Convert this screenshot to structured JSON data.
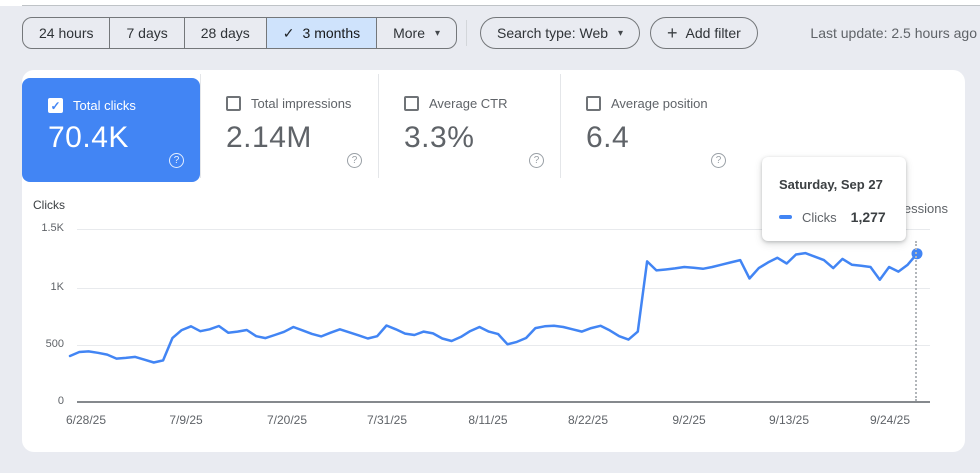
{
  "toolbar": {
    "date_ranges": [
      {
        "label": "24 hours",
        "selected": false
      },
      {
        "label": "7 days",
        "selected": false
      },
      {
        "label": "28 days",
        "selected": false
      },
      {
        "label": "3 months",
        "selected": true
      }
    ],
    "more_label": "More",
    "search_type_label": "Search type: Web",
    "add_filter_label": "Add filter",
    "last_update": "Last update: 2.5 hours ago"
  },
  "icons": {
    "check": "✓",
    "caret": "▾",
    "plus": "+",
    "question": "?"
  },
  "metrics": [
    {
      "label": "Total clicks",
      "value": "70.4K",
      "checked": true,
      "color": "#4285f4"
    },
    {
      "label": "Total impressions",
      "value": "2.14M",
      "checked": false
    },
    {
      "label": "Average CTR",
      "value": "3.3%",
      "checked": false
    },
    {
      "label": "Average position",
      "value": "6.4",
      "checked": false
    }
  ],
  "tooltip": {
    "title": "Saturday, Sep 27",
    "series": "Clicks",
    "value": "1,277"
  },
  "chart_data": {
    "type": "line",
    "ylabel_left": "Clicks",
    "ylabel_right": "Impressions",
    "ylim": [
      0,
      1500
    ],
    "y_ticks": [
      "1.5K",
      "1K",
      "500",
      "0"
    ],
    "x_ticks": [
      "6/28/25",
      "7/9/25",
      "7/20/25",
      "7/31/25",
      "8/11/25",
      "8/22/25",
      "9/2/25",
      "9/13/25",
      "9/24/25"
    ],
    "grid": true,
    "series": [
      {
        "name": "Clicks",
        "color": "#4285f4",
        "start_date": "6/28/25",
        "end_date": "9/27/25",
        "values": [
          390,
          425,
          430,
          418,
          402,
          368,
          374,
          382,
          358,
          334,
          352,
          545,
          615,
          648,
          605,
          622,
          650,
          592,
          602,
          616,
          562,
          545,
          572,
          600,
          642,
          612,
          582,
          560,
          592,
          622,
          596,
          570,
          542,
          562,
          655,
          622,
          584,
          572,
          602,
          586,
          542,
          520,
          556,
          606,
          642,
          602,
          580,
          492,
          512,
          546,
          632,
          648,
          652,
          642,
          622,
          602,
          632,
          652,
          612,
          562,
          532,
          602,
          1210,
          1132,
          1140,
          1150,
          1162,
          1156,
          1146,
          1162,
          1182,
          1202,
          1222,
          1062,
          1152,
          1202,
          1242,
          1192,
          1270,
          1282,
          1252,
          1222,
          1152,
          1232,
          1182,
          1172,
          1162,
          1052,
          1162,
          1122,
          1182,
          1277
        ]
      }
    ],
    "highlight": {
      "date": "Saturday, Sep 27",
      "value": 1277,
      "index": 91
    }
  }
}
